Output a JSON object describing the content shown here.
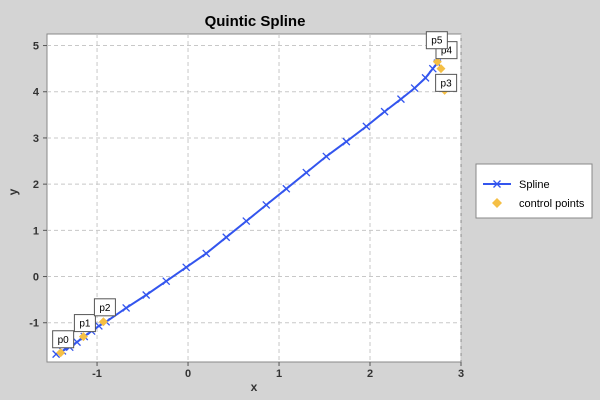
{
  "chart_data": {
    "type": "line",
    "title": "Quintic Spline",
    "xlabel": "x",
    "ylabel": "y",
    "xlim": [
      -1.55,
      3.0
    ],
    "ylim": [
      -1.85,
      5.25
    ],
    "xticks": [
      -1,
      0,
      1,
      2,
      3
    ],
    "yticks": [
      -1,
      0,
      1,
      2,
      3,
      4,
      5
    ],
    "grid": true,
    "legend_position": "right",
    "series": [
      {
        "name": "Spline",
        "kind": "line",
        "color": "#3355ee",
        "marker": "x-cross",
        "x": [
          -1.45,
          -1.38,
          -1.3,
          -1.22,
          -1.14,
          -1.06,
          -0.98,
          -0.9,
          -0.68,
          -0.46,
          -0.24,
          -0.02,
          0.2,
          0.42,
          0.64,
          0.86,
          1.08,
          1.3,
          1.52,
          1.74,
          1.96,
          2.16,
          2.34,
          2.49,
          2.61,
          2.69,
          2.74
        ],
        "y": [
          -1.68,
          -1.61,
          -1.53,
          -1.42,
          -1.3,
          -1.18,
          -1.07,
          -0.98,
          -0.68,
          -0.4,
          -0.1,
          0.2,
          0.5,
          0.85,
          1.2,
          1.55,
          1.9,
          2.25,
          2.6,
          2.92,
          3.25,
          3.57,
          3.84,
          4.08,
          4.3,
          4.5,
          4.62
        ]
      },
      {
        "name": "control points",
        "kind": "scatter",
        "color": "#f5bf45",
        "marker": "diamond",
        "labels": [
          "p0",
          "p1",
          "p2",
          "p3",
          "p4",
          "p5"
        ],
        "x": [
          -1.4,
          -1.15,
          -0.93,
          2.82,
          2.78,
          2.74
        ],
        "y": [
          -1.65,
          -1.3,
          -0.98,
          4.03,
          4.5,
          4.65
        ]
      }
    ]
  }
}
